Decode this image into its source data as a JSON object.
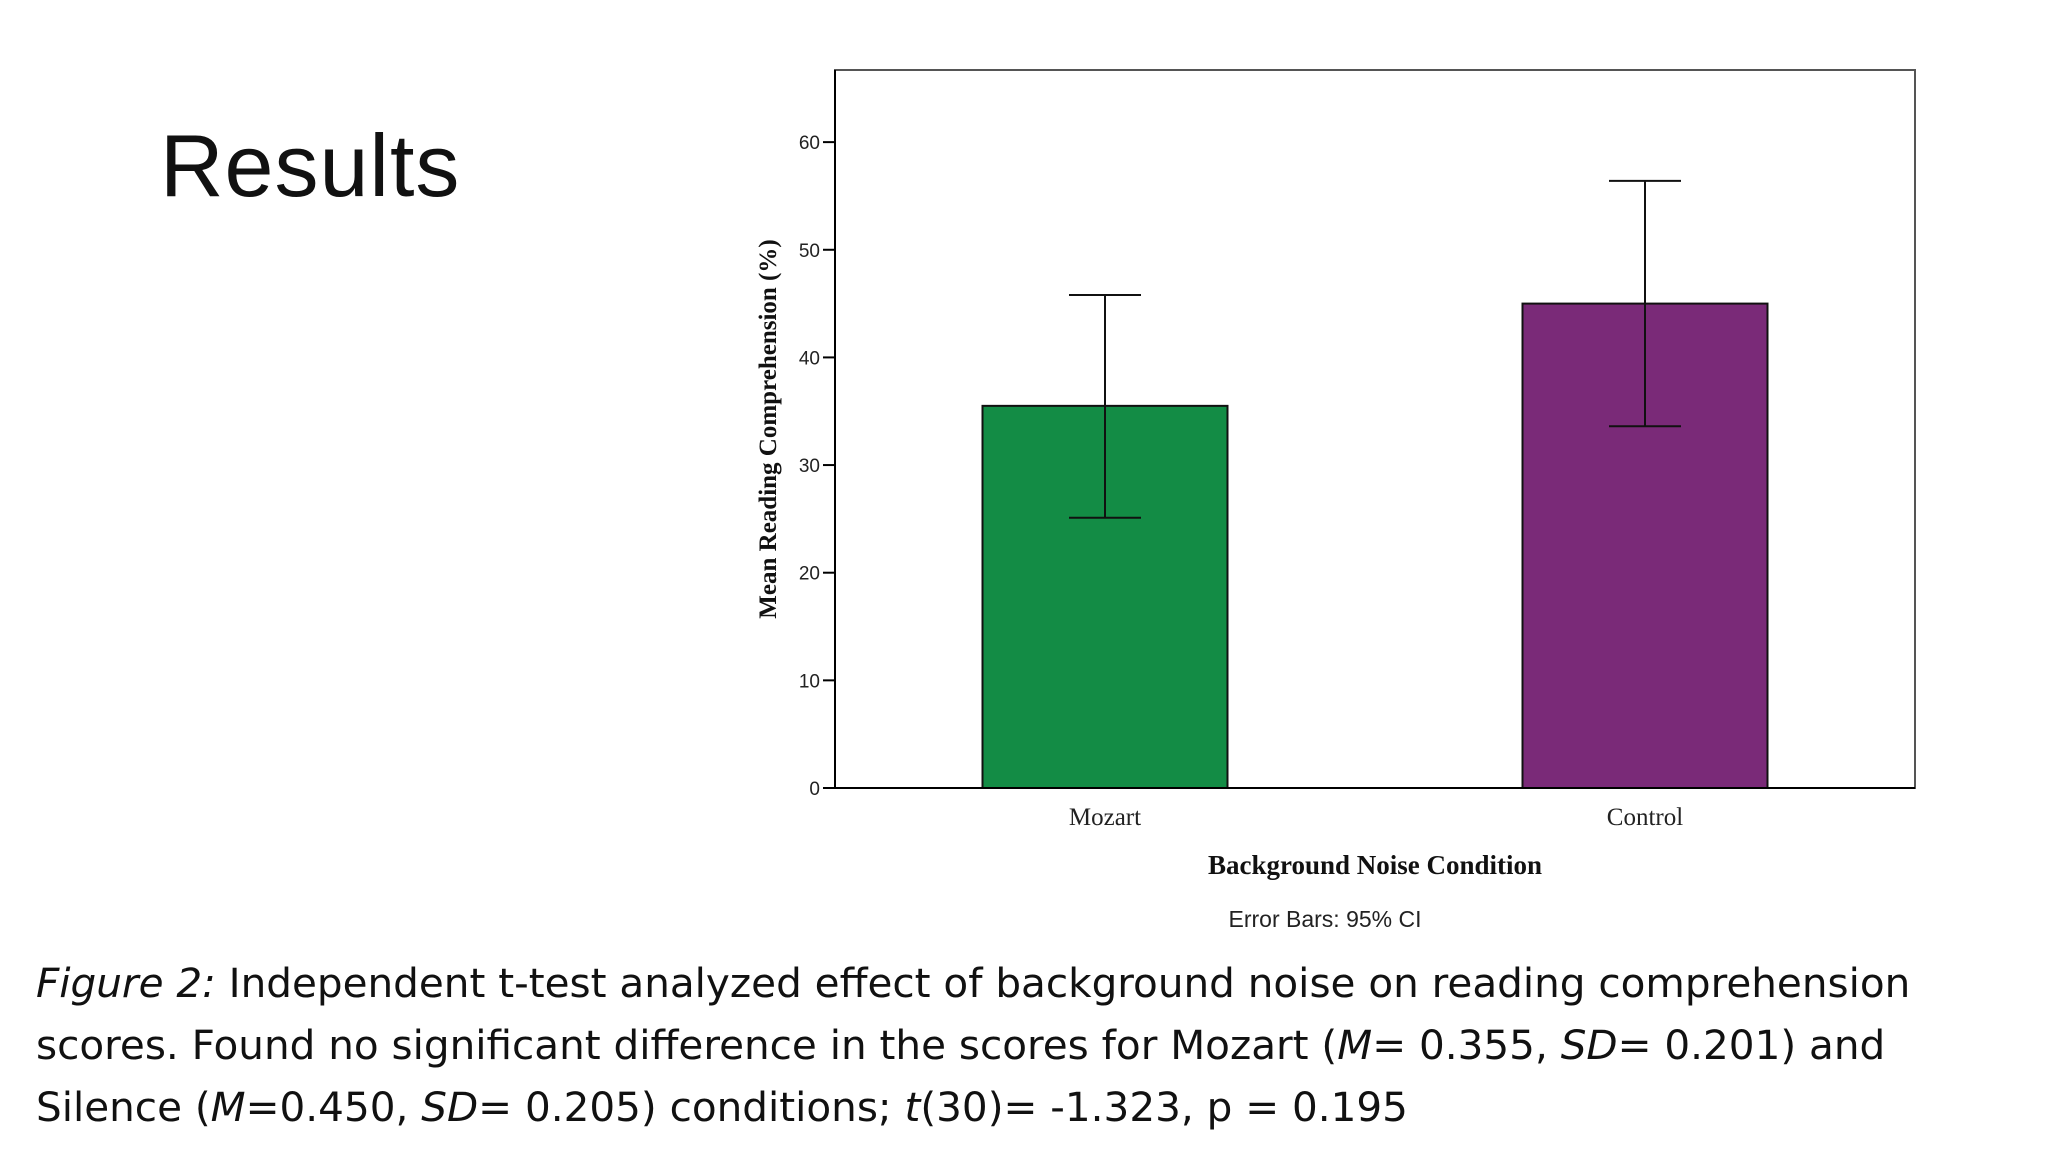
{
  "slide": {
    "title": "Results"
  },
  "chart_data": {
    "type": "bar",
    "categories": [
      "Mozart",
      "Control"
    ],
    "values": [
      35.5,
      45.0
    ],
    "error_bars": {
      "lower": [
        25.1,
        33.6
      ],
      "upper": [
        45.8,
        56.4
      ],
      "label": "Error Bars: 95% CI"
    },
    "colors": [
      "#138c45",
      "#7a2a78"
    ],
    "xlabel": "Background Noise Condition",
    "ylabel": "Mean Reading Comprehension (%)",
    "ylim": [
      0,
      66.7
    ],
    "yticks": [
      0,
      10,
      20,
      30,
      40,
      50,
      60
    ],
    "grid": false,
    "legend": false
  },
  "caption": {
    "fig_label": "Figure 2:",
    "l1": " Independent t-test analyzed effect of background noise on reading comprehension",
    "l2a": "scores. Found no significant difference in the scores for Mozart (",
    "m1": "M",
    "l2b": "= 0.355, ",
    "sd1": "SD",
    "l2c": "= 0.201) and",
    "l3a": "Silence (",
    "m2": "M",
    "l3b": "=0.450, ",
    "sd2": "SD",
    "l3c": "= 0.205) conditions; ",
    "t": "t",
    "l3d": "(30)= -1.323, p = 0.195"
  }
}
